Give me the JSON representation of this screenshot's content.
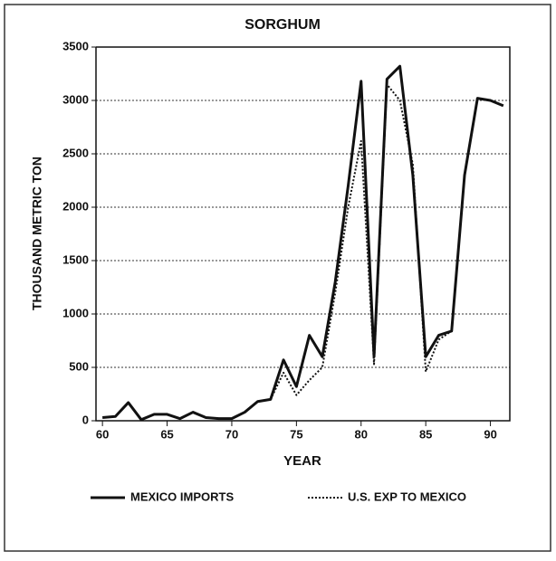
{
  "chart_data": {
    "type": "line",
    "title": "SORGHUM",
    "xlabel": "YEAR",
    "ylabel": "THOUSAND METRIC TON",
    "x": [
      60,
      61,
      62,
      63,
      64,
      65,
      66,
      67,
      68,
      69,
      70,
      71,
      72,
      73,
      74,
      75,
      76,
      77,
      78,
      79,
      80,
      81,
      82,
      83,
      84,
      85,
      86,
      87,
      88,
      89,
      90,
      91
    ],
    "series": [
      {
        "name": "MEXICO IMPORTS",
        "color": "#111111",
        "style": "solid",
        "values": [
          30,
          40,
          170,
          10,
          60,
          60,
          20,
          80,
          30,
          20,
          20,
          80,
          180,
          200,
          570,
          320,
          800,
          600,
          1300,
          2200,
          3180,
          600,
          3200,
          3320,
          2300,
          600,
          800,
          840,
          2300,
          3020,
          3000,
          2950
        ]
      },
      {
        "name": "U.S. EXP TO MEXICO",
        "color": "#111111",
        "style": "dotted",
        "values": [
          null,
          null,
          null,
          null,
          null,
          null,
          null,
          null,
          null,
          null,
          null,
          null,
          null,
          200,
          450,
          240,
          380,
          500,
          1200,
          2000,
          2620,
          530,
          3150,
          3000,
          2400,
          460,
          760,
          840,
          null,
          null,
          null,
          null
        ]
      }
    ],
    "xlim": [
      59.5,
      91.5
    ],
    "xticks": [
      60,
      65,
      70,
      75,
      80,
      85,
      90
    ],
    "ylim": [
      0,
      3500
    ],
    "yticks": [
      0,
      500,
      1000,
      1500,
      2000,
      2500,
      3000,
      3500
    ],
    "grid": true,
    "legend": "bottom"
  }
}
